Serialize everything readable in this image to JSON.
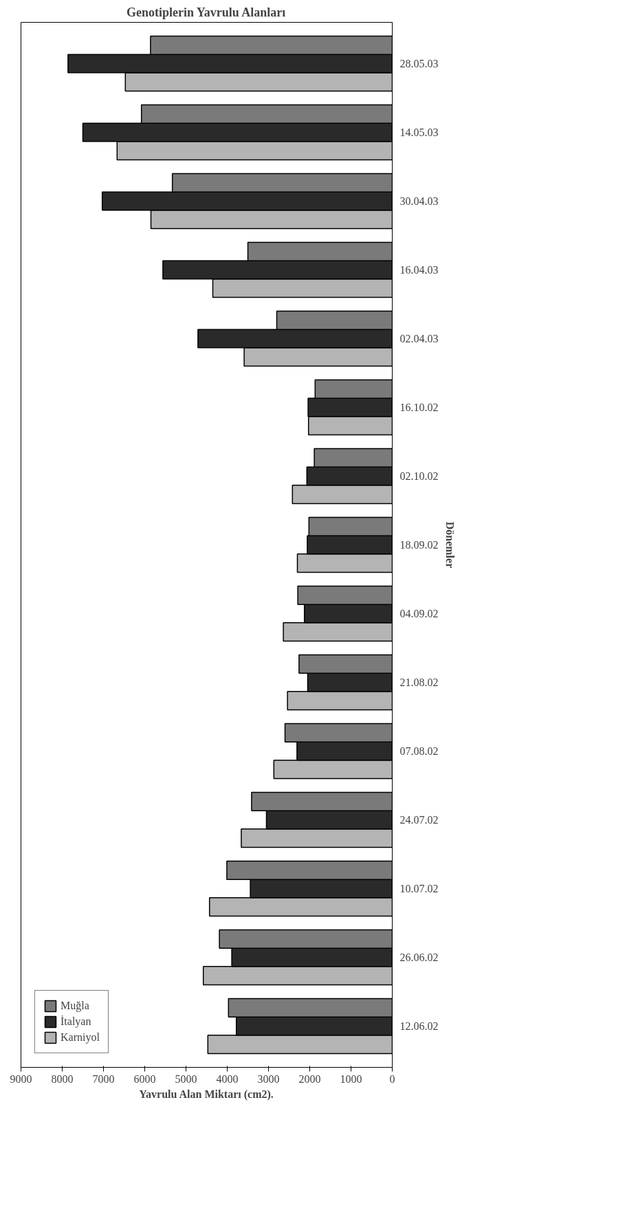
{
  "chart_data": {
    "type": "bar",
    "orientation": "horizontal",
    "title": "Genotiplerin Yavrulu Alanları",
    "xlabel": "Yavrulu Alan Miktarı (cm2).",
    "ylabel": "Dönemler",
    "categories": [
      "28.05.03",
      "14.05.03",
      "30.04.03",
      "16.04.03",
      "02.04.03",
      "16.10.02",
      "02.10.02",
      "18.09.02",
      "04.09.02",
      "21.08.02",
      "07.08.02",
      "24.07.02",
      "10.07.02",
      "26.06.02",
      "12.06.02"
    ],
    "series": [
      {
        "name": "Karniyol",
        "color": "#b4b4b4",
        "values": [
          6470,
          6670,
          5850,
          4350,
          3590,
          2030,
          2420,
          2300,
          2640,
          2540,
          2870,
          3660,
          4430,
          4580,
          4470
        ]
      },
      {
        "name": "İtalyan",
        "color": "#2a2a2a",
        "values": [
          7860,
          7500,
          7030,
          5560,
          4710,
          2040,
          2070,
          2060,
          2130,
          2050,
          2310,
          3050,
          3440,
          3890,
          3780
        ]
      },
      {
        "name": "Muğla",
        "color": "#7a7a7a",
        "values": [
          5860,
          6080,
          5330,
          3500,
          2800,
          1870,
          1890,
          2020,
          2290,
          2260,
          2600,
          3410,
          4010,
          4190,
          3970
        ]
      }
    ],
    "xlim": [
      9000,
      0
    ],
    "xticks": [
      0,
      1000,
      2000,
      3000,
      4000,
      5000,
      6000,
      7000,
      8000,
      9000
    ],
    "grid": false,
    "legend": "bottom left"
  }
}
